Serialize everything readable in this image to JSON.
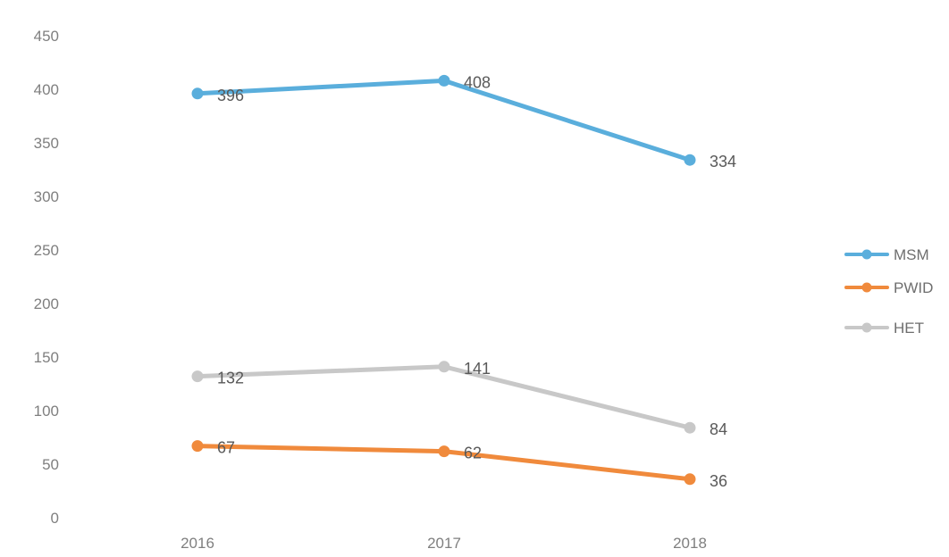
{
  "chart_data": {
    "type": "line",
    "title": "",
    "xlabel": "",
    "ylabel": "",
    "categories": [
      "2016",
      "2017",
      "2018"
    ],
    "ylim": [
      0,
      450
    ],
    "yticks": [
      "0",
      "50",
      "100",
      "150",
      "200",
      "250",
      "300",
      "350",
      "400",
      "450"
    ],
    "grid": false,
    "legend": "right",
    "series": [
      {
        "name": "MSM",
        "values": [
          396,
          408,
          334
        ],
        "labels": [
          "396",
          "408",
          "334"
        ],
        "color": "#5aaedc"
      },
      {
        "name": "PWID",
        "values": [
          67,
          62,
          36
        ],
        "labels": [
          "67",
          "62",
          "36"
        ],
        "color": "#f08a3c"
      },
      {
        "name": "HET",
        "values": [
          132,
          141,
          84
        ],
        "labels": [
          "132",
          "141",
          "84"
        ],
        "color": "#c8c8c8"
      }
    ]
  }
}
